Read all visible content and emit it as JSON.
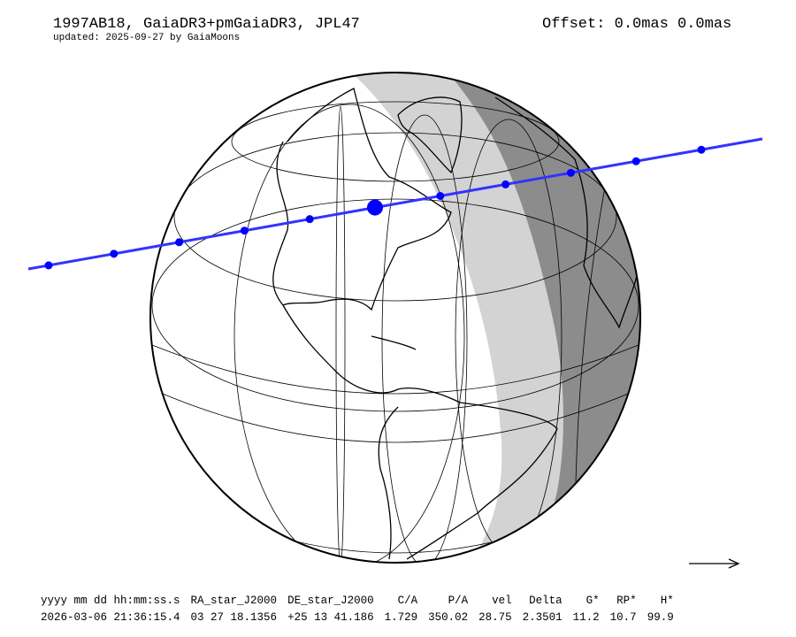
{
  "header": {
    "title": "1997AB18, GaiaDR3+pmGaiaDR3, JPL47",
    "subtitle": "updated: 2025-09-27 by GaiaMoons",
    "offset": "Offset: 0.0mas 0.0mas"
  },
  "map": {
    "projection": "orthographic globe",
    "path_color": "#3333ff",
    "twilight_color": "#d3d3d3",
    "night_color": "#8c8c8c",
    "direction_icon": "arrow-right-icon"
  },
  "table": {
    "headers": [
      "yyyy mm dd hh:mm:ss.s",
      "RA_star_J2000",
      "DE_star_J2000",
      "C/A",
      "P/A",
      "vel",
      "Delta",
      "G*",
      "RP*",
      "H*"
    ],
    "values": [
      "2026-03-06 21:36:15.4",
      "03 27 18.1356",
      "+25 13 41.186",
      "1.729",
      "350.02",
      "28.75",
      "2.3501",
      "11.2",
      "10.7",
      "99.9"
    ]
  }
}
